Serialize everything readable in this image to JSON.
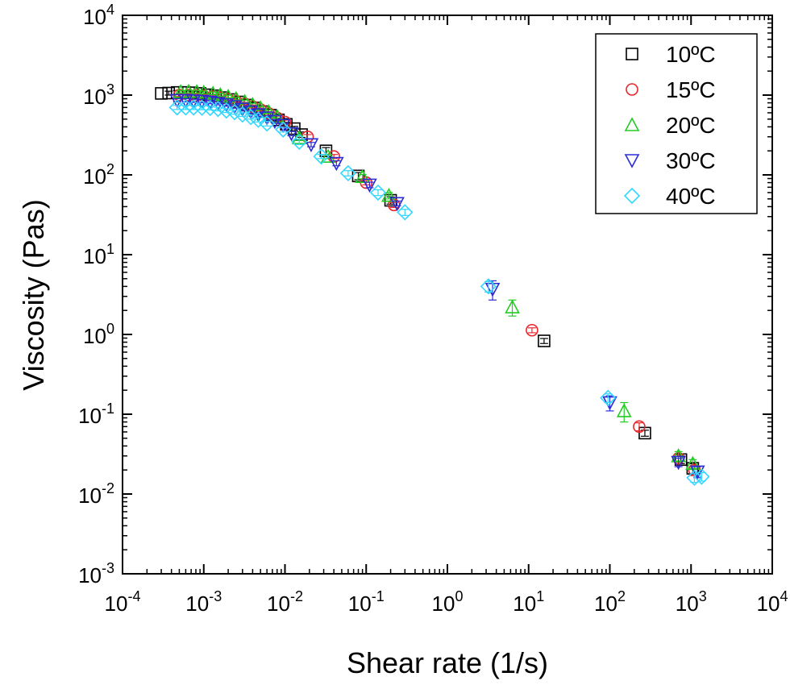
{
  "chart_data": {
    "type": "scatter",
    "xlabel": "Shear rate (1/s)",
    "ylabel": "Viscosity (Pas)",
    "x_scale": "log",
    "y_scale": "log",
    "xlim": [
      0.0001,
      10000
    ],
    "ylim": [
      0.001,
      10000
    ],
    "x_ticks": [
      0.0001,
      0.001,
      0.01,
      0.1,
      1,
      10,
      100,
      1000,
      10000
    ],
    "y_ticks": [
      0.001,
      0.01,
      0.1,
      1,
      10,
      100,
      1000,
      10000
    ],
    "x_tick_labels": [
      {
        "base": "10",
        "exp": "-4"
      },
      {
        "base": "10",
        "exp": "-3"
      },
      {
        "base": "10",
        "exp": "-2"
      },
      {
        "base": "10",
        "exp": "-1"
      },
      {
        "base": "10",
        "exp": "0"
      },
      {
        "base": "10",
        "exp": "1"
      },
      {
        "base": "10",
        "exp": "2"
      },
      {
        "base": "10",
        "exp": "3"
      },
      {
        "base": "10",
        "exp": "4"
      }
    ],
    "y_tick_labels": [
      {
        "base": "10",
        "exp": "-3"
      },
      {
        "base": "10",
        "exp": "-2"
      },
      {
        "base": "10",
        "exp": "-1"
      },
      {
        "base": "10",
        "exp": "0"
      },
      {
        "base": "10",
        "exp": "1"
      },
      {
        "base": "10",
        "exp": "2"
      },
      {
        "base": "10",
        "exp": "3"
      },
      {
        "base": "10",
        "exp": "4"
      }
    ],
    "grid": false,
    "legend_position": "top-right",
    "series": [
      {
        "name": "10ºC",
        "marker": "square",
        "color": "#000000",
        "points": [
          [
            0.0003,
            1050
          ],
          [
            0.00037,
            1060
          ],
          [
            0.00047,
            1080
          ],
          [
            0.00058,
            1080
          ],
          [
            0.00072,
            1070
          ],
          [
            0.0009,
            1050
          ],
          [
            0.0011,
            1010
          ],
          [
            0.0014,
            980
          ],
          [
            0.0017,
            930
          ],
          [
            0.0022,
            880
          ],
          [
            0.0027,
            820
          ],
          [
            0.0034,
            750
          ],
          [
            0.0042,
            690
          ],
          [
            0.0053,
            620
          ],
          [
            0.0066,
            560
          ],
          [
            0.0083,
            490
          ],
          [
            0.0104,
            430
          ],
          [
            0.013,
            380
          ],
          [
            0.016,
            320
          ],
          [
            0.032,
            200
          ],
          [
            0.08,
            97
          ],
          [
            0.2,
            48
          ],
          [
            15.5,
            0.83
          ],
          [
            270,
            0.058
          ],
          [
            750,
            0.027
          ],
          [
            1050,
            0.021
          ]
        ],
        "errors": [
          0,
          60,
          60,
          50,
          50,
          50,
          40,
          40,
          40,
          30,
          30,
          30,
          30,
          30,
          30,
          25,
          25,
          25,
          25,
          20,
          10,
          5,
          0.06,
          0.005,
          0.003,
          0.003
        ]
      },
      {
        "name": "15ºC",
        "marker": "circle",
        "color": "#e8262b",
        "points": [
          [
            0.0005,
            1000
          ],
          [
            0.00065,
            1000
          ],
          [
            0.0008,
            990
          ],
          [
            0.001,
            980
          ],
          [
            0.0013,
            960
          ],
          [
            0.0016,
            930
          ],
          [
            0.002,
            890
          ],
          [
            0.0025,
            840
          ],
          [
            0.0032,
            780
          ],
          [
            0.004,
            720
          ],
          [
            0.005,
            660
          ],
          [
            0.0063,
            590
          ],
          [
            0.008,
            520
          ],
          [
            0.01,
            460
          ],
          [
            0.019,
            300
          ],
          [
            0.04,
            170
          ],
          [
            0.1,
            80
          ],
          [
            0.22,
            42
          ],
          [
            11,
            1.13
          ],
          [
            230,
            0.07
          ],
          [
            700,
            0.028
          ],
          [
            1100,
            0.02
          ]
        ],
        "errors": [
          40,
          40,
          40,
          40,
          40,
          35,
          35,
          35,
          30,
          30,
          30,
          30,
          25,
          25,
          20,
          10,
          5,
          3,
          0.08,
          0.008,
          0.003,
          0.003
        ]
      },
      {
        "name": "20ºC",
        "marker": "triangle-up",
        "color": "#22cc22",
        "points": [
          [
            0.00052,
            1100
          ],
          [
            0.00065,
            1110
          ],
          [
            0.00082,
            1100
          ],
          [
            0.001,
            1080
          ],
          [
            0.0013,
            1050
          ],
          [
            0.0016,
            1010
          ],
          [
            0.002,
            960
          ],
          [
            0.0025,
            900
          ],
          [
            0.0032,
            830
          ],
          [
            0.004,
            760
          ],
          [
            0.005,
            690
          ],
          [
            0.0063,
            620
          ],
          [
            0.008,
            540
          ],
          [
            0.015,
            290
          ],
          [
            0.034,
            170
          ],
          [
            0.09,
            95
          ],
          [
            0.19,
            55
          ],
          [
            6.3,
            2.2
          ],
          [
            150,
            0.11
          ],
          [
            700,
            0.03
          ],
          [
            1050,
            0.024
          ]
        ],
        "errors": [
          40,
          40,
          40,
          40,
          40,
          40,
          35,
          35,
          35,
          30,
          30,
          30,
          25,
          20,
          10,
          6,
          5,
          0.5,
          0.03,
          0.004,
          0.003
        ]
      },
      {
        "name": "30ºC",
        "marker": "triangle-down",
        "color": "#2b2bd6",
        "points": [
          [
            0.00047,
            860
          ],
          [
            0.0006,
            860
          ],
          [
            0.00075,
            850
          ],
          [
            0.00095,
            840
          ],
          [
            0.0012,
            820
          ],
          [
            0.0015,
            790
          ],
          [
            0.0019,
            760
          ],
          [
            0.0024,
            720
          ],
          [
            0.003,
            670
          ],
          [
            0.0038,
            620
          ],
          [
            0.0047,
            570
          ],
          [
            0.006,
            520
          ],
          [
            0.0075,
            470
          ],
          [
            0.0095,
            420
          ],
          [
            0.012,
            330
          ],
          [
            0.021,
            240
          ],
          [
            0.043,
            140
          ],
          [
            0.11,
            75
          ],
          [
            0.24,
            44
          ],
          [
            3.6,
            3.7
          ],
          [
            100,
            0.14
          ],
          [
            700,
            0.025
          ],
          [
            1200,
            0.019
          ]
        ],
        "errors": [
          40,
          40,
          40,
          40,
          40,
          35,
          35,
          35,
          30,
          30,
          30,
          30,
          25,
          25,
          20,
          15,
          10,
          6,
          3,
          1.0,
          0.03,
          0.003,
          0.003
        ]
      },
      {
        "name": "40ºC",
        "marker": "diamond",
        "color": "#33d6ff",
        "points": [
          [
            0.00047,
            700
          ],
          [
            0.0006,
            700
          ],
          [
            0.00075,
            700
          ],
          [
            0.00095,
            695
          ],
          [
            0.0012,
            690
          ],
          [
            0.0015,
            670
          ],
          [
            0.0019,
            640
          ],
          [
            0.0024,
            610
          ],
          [
            0.003,
            570
          ],
          [
            0.0038,
            530
          ],
          [
            0.0047,
            490
          ],
          [
            0.006,
            440
          ],
          [
            0.0095,
            370
          ],
          [
            0.015,
            260
          ],
          [
            0.028,
            170
          ],
          [
            0.06,
            105
          ],
          [
            0.14,
            60
          ],
          [
            0.3,
            34
          ],
          [
            3.2,
            4.0
          ],
          [
            95,
            0.16
          ],
          [
            1100,
            0.016
          ],
          [
            1350,
            0.0165
          ]
        ],
        "errors": [
          40,
          40,
          40,
          40,
          40,
          35,
          35,
          35,
          30,
          30,
          30,
          30,
          25,
          20,
          10,
          8,
          5,
          3,
          0.6,
          0.02,
          0.002,
          0.002
        ]
      }
    ]
  }
}
